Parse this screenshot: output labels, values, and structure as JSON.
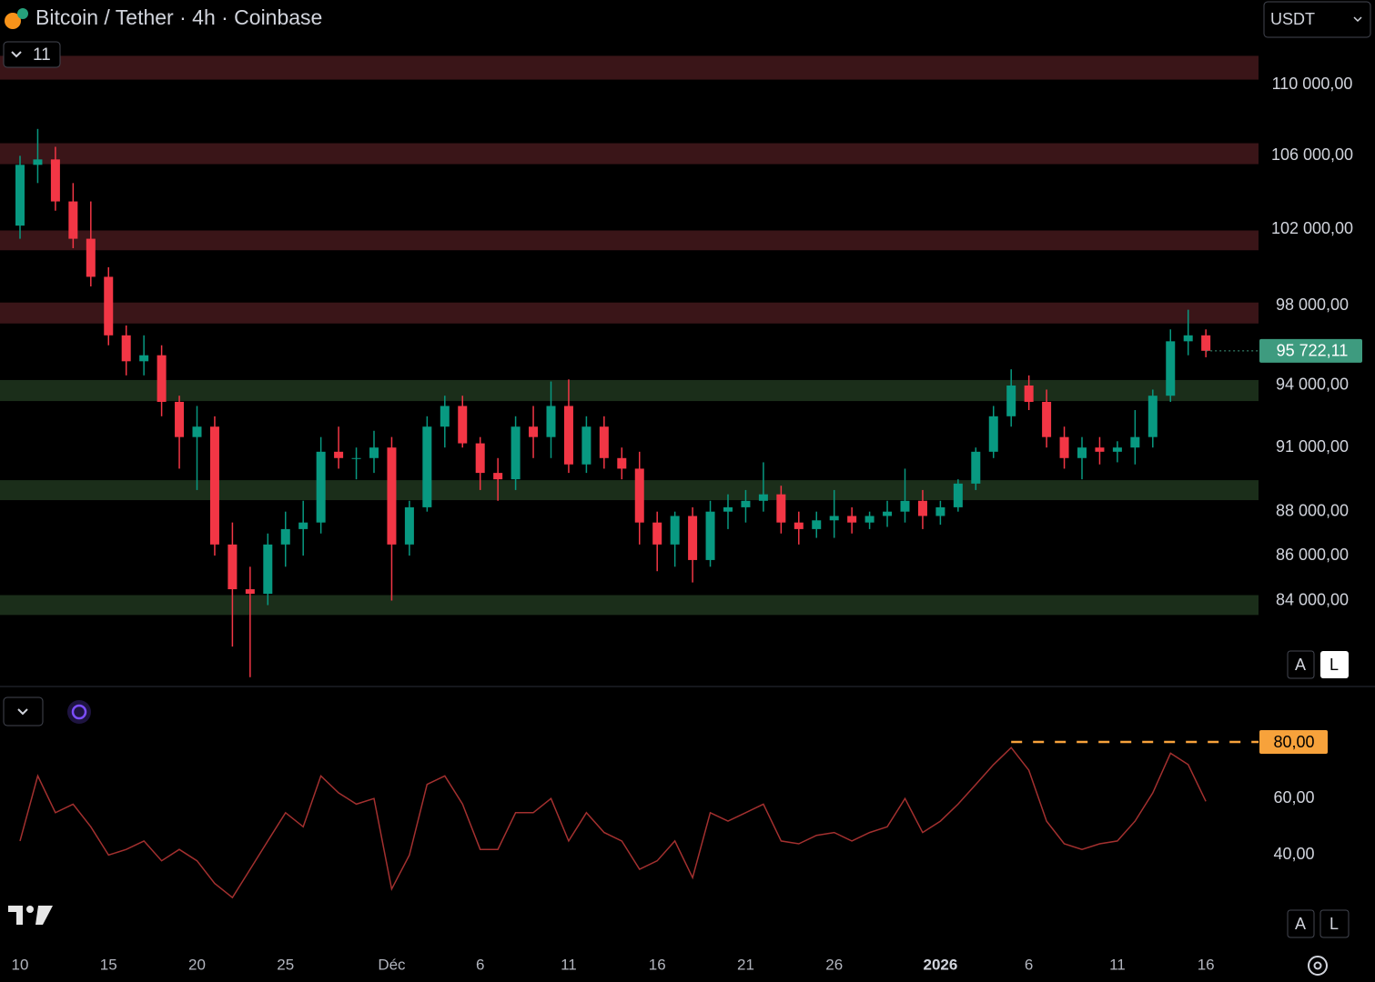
{
  "ui": {
    "title": "Bitcoin / Tether · 4h · Coinbase",
    "indicator_count": "11",
    "currency": "USDT",
    "scale_buttons": [
      "A",
      "L"
    ]
  },
  "chart_data": [
    {
      "type": "candlestick",
      "categories": [
        "10",
        null,
        null,
        null,
        null,
        "15",
        null,
        null,
        null,
        null,
        "20",
        null,
        null,
        null,
        null,
        "25",
        null,
        null,
        null,
        null,
        null,
        "Déc",
        null,
        null,
        null,
        null,
        "6",
        null,
        null,
        null,
        null,
        "11",
        null,
        null,
        null,
        null,
        "16",
        null,
        null,
        null,
        null,
        "21",
        null,
        null,
        null,
        null,
        "26",
        null,
        null,
        null,
        null,
        null,
        "2026",
        null,
        null,
        null,
        null,
        "6",
        null,
        null,
        null,
        null,
        "11",
        null,
        null,
        null,
        null,
        "16"
      ],
      "open": [
        102200,
        105500,
        105800,
        103500,
        101500,
        99500,
        96500,
        95200,
        95500,
        93200,
        91500,
        92000,
        86500,
        84500,
        84300,
        86500,
        87200,
        87500,
        90800,
        90500,
        90500,
        91000,
        86500,
        88200,
        92000,
        93000,
        91200,
        89800,
        89500,
        92000,
        91500,
        93000,
        90200,
        92000,
        90500,
        90000,
        87500,
        86500,
        87800,
        85800,
        88000,
        88200,
        88500,
        88800,
        87500,
        87200,
        87600,
        87800,
        87500,
        87800,
        88000,
        88500,
        87800,
        88200,
        89300,
        90800,
        92500,
        94000,
        93200,
        91500,
        90500,
        91000,
        90800,
        91000,
        91500,
        93500,
        96200,
        96500
      ],
      "high": [
        106000,
        107500,
        106500,
        104500,
        103500,
        100000,
        97000,
        96500,
        96000,
        93500,
        93000,
        92500,
        87500,
        85500,
        87000,
        88000,
        88500,
        91500,
        92000,
        91000,
        91800,
        91500,
        88500,
        92500,
        93500,
        93500,
        91500,
        90500,
        92500,
        93000,
        94200,
        94300,
        92500,
        92500,
        91000,
        90800,
        88000,
        88000,
        88200,
        88500,
        88800,
        89000,
        90300,
        89200,
        88000,
        88000,
        89000,
        88200,
        88000,
        88500,
        90000,
        89000,
        88500,
        89500,
        91000,
        93000,
        94800,
        94500,
        93800,
        92000,
        91500,
        91500,
        91300,
        92800,
        93800,
        96800,
        97800,
        96800
      ],
      "low": [
        101500,
        104500,
        103000,
        101000,
        99000,
        96000,
        94500,
        94500,
        92500,
        90000,
        89000,
        86000,
        82000,
        80700,
        83800,
        85500,
        86000,
        87000,
        90000,
        89500,
        89800,
        84000,
        86000,
        88000,
        91000,
        91000,
        89000,
        88500,
        89000,
        90500,
        90500,
        89800,
        89800,
        90000,
        89500,
        86500,
        85300,
        85500,
        84800,
        85500,
        87200,
        87500,
        88000,
        87000,
        86500,
        86800,
        86800,
        87000,
        87200,
        87300,
        87500,
        87200,
        87400,
        88000,
        89000,
        90500,
        92000,
        92800,
        91000,
        90000,
        89500,
        90200,
        90300,
        90200,
        91000,
        93200,
        95500,
        95400
      ],
      "close": [
        105500,
        105800,
        103500,
        101500,
        99500,
        96500,
        95200,
        95500,
        93200,
        91500,
        92000,
        86500,
        84500,
        84300,
        86500,
        87200,
        87500,
        90800,
        90500,
        90500,
        91000,
        86500,
        88200,
        92000,
        93000,
        91200,
        89800,
        89500,
        92000,
        91500,
        93000,
        90200,
        92000,
        90500,
        90000,
        87500,
        86500,
        87800,
        85800,
        88000,
        88200,
        88500,
        88800,
        87500,
        87200,
        87600,
        87800,
        87500,
        87800,
        88000,
        88500,
        87800,
        88200,
        89300,
        90800,
        92500,
        94000,
        93200,
        91500,
        90500,
        91000,
        90800,
        91000,
        91500,
        93500,
        96200,
        96500,
        95722.11
      ],
      "up_color": "#089981",
      "down_color": "#f23645",
      "ylim": [
        80500,
        115000
      ],
      "log_scale": true,
      "yticks": [
        {
          "value": 110000,
          "label": "110 000,00"
        },
        {
          "value": 106000,
          "label": "106 000,00"
        },
        {
          "value": 102000,
          "label": "102 000,00"
        },
        {
          "value": 98000,
          "label": "98 000,00"
        },
        {
          "value": 94000,
          "label": "94 000,00"
        },
        {
          "value": 91000,
          "label": "91 000,00"
        },
        {
          "value": 88000,
          "label": "88 000,00"
        },
        {
          "value": 86000,
          "label": "86 000,00"
        },
        {
          "value": 84000,
          "label": "84 000,00"
        }
      ],
      "zones": [
        {
          "low": 110310,
          "high": 111690,
          "color": "#3a1518"
        },
        {
          "low": 105540,
          "high": 106700,
          "color": "#3a1518"
        },
        {
          "low": 100890,
          "high": 101940,
          "color": "#3a1518"
        },
        {
          "low": 97100,
          "high": 98170,
          "color": "#3a1518"
        },
        {
          "low": 93240,
          "high": 94270,
          "color": "#1b2e1a"
        },
        {
          "low": 88530,
          "high": 89460,
          "color": "#1b2e1a"
        },
        {
          "low": 83370,
          "high": 84240,
          "color": "#1b2e1a"
        }
      ],
      "last_value": {
        "value": 95722.11,
        "label": "95 722,11",
        "color": "#3e9b7f"
      }
    },
    {
      "type": "line",
      "values": [
        45,
        68,
        55,
        58,
        50,
        40,
        42,
        45,
        38,
        42,
        38,
        30,
        25,
        35,
        45,
        55,
        50,
        68,
        62,
        58,
        60,
        28,
        40,
        65,
        68,
        58,
        42,
        42,
        55,
        55,
        60,
        45,
        55,
        48,
        45,
        35,
        38,
        45,
        32,
        55,
        52,
        55,
        58,
        45,
        44,
        47,
        48,
        45,
        48,
        50,
        60,
        48,
        52,
        58,
        65,
        72,
        78,
        70,
        52,
        44,
        42,
        44,
        45,
        52,
        62,
        76,
        72,
        59
      ],
      "color": "#a3302f",
      "ylim": [
        8,
        98
      ],
      "yticks": [
        {
          "value": 60,
          "label": "60,00"
        },
        {
          "value": 40,
          "label": "40,00"
        }
      ],
      "level": {
        "value": 80,
        "label": "80,00",
        "color": "#f7a23b"
      }
    }
  ]
}
